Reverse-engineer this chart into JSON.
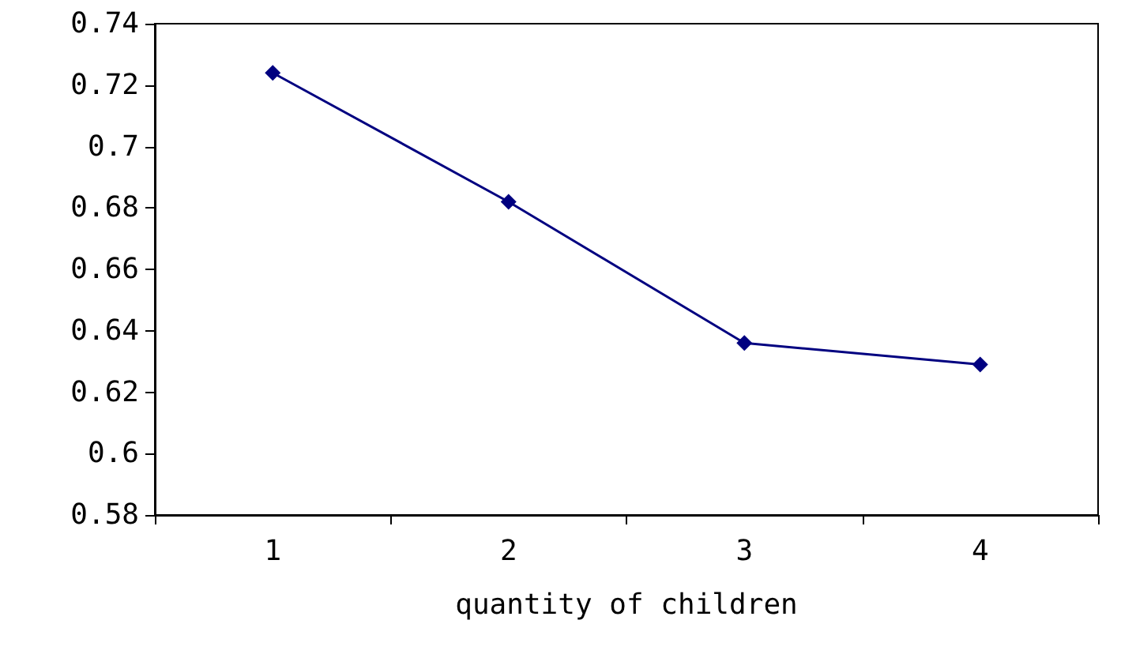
{
  "chart_data": {
    "type": "line",
    "xlabel": "quantity of children",
    "categories": [
      "1",
      "2",
      "3",
      "4"
    ],
    "series": [
      {
        "color": "#000080",
        "values": [
          0.724,
          0.682,
          0.636,
          0.629
        ]
      }
    ],
    "ylim": [
      0.58,
      0.74
    ],
    "yticks": [
      0.58,
      0.6,
      0.62,
      0.64,
      0.66,
      0.68,
      0.7,
      0.72,
      0.74
    ],
    "grid": false,
    "marker": "diamond",
    "line_style": "solid"
  }
}
